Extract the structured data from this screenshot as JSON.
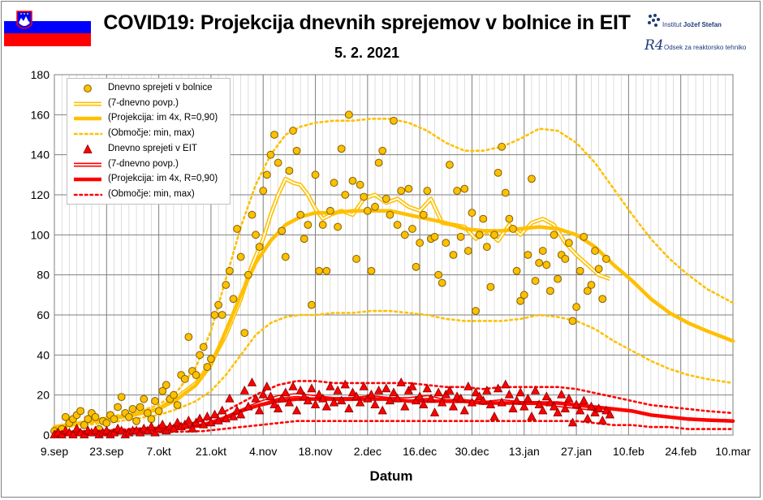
{
  "header": {
    "title": "COVID19: Projekcija dnevnih sprejemov v bolnice in EIT",
    "subtitle": "5. 2. 2021",
    "institute_1_prefix": "Institut ",
    "institute_1_name": "Jožef Stefan",
    "institute_2": "Odsek za reaktorsko tehniko",
    "logo_2_text": "R4"
  },
  "colors": {
    "hospital": "#ffc000",
    "hospital_dark": "#7f6000",
    "icu": "#ff0000",
    "icu_dark": "#7f0000",
    "flag_white": "#ffffff",
    "flag_blue": "#0000ff",
    "flag_red": "#ff0000"
  },
  "legend": [
    {
      "symbol": "circle",
      "label": "Dnevno sprejeti v bolnice"
    },
    {
      "symbol": "double",
      "label": "(7-dnevno povp.)"
    },
    {
      "symbol": "thick",
      "label": "(Projekcija: im 4x, R=0,90)"
    },
    {
      "symbol": "dotted",
      "label": "(Območje: min, max)"
    },
    {
      "symbol": "triangle",
      "label": "Dnevno sprejeti v EIT"
    },
    {
      "symbol": "double",
      "label": "(7-dnevno povp.)"
    },
    {
      "symbol": "thick",
      "label": "(Projekcija: im 4x, R=0,90)"
    },
    {
      "symbol": "dotted",
      "label": "(Območje: min, max)"
    }
  ],
  "chart_data": {
    "type": "scatter",
    "title": "COVID19: Projekcija dnevnih sprejemov v bolnice in EIT",
    "subtitle": "5. 2. 2021",
    "xlabel": "Datum",
    "ylabel": "",
    "xlim": [
      "2020-09-09",
      "2021-03-10"
    ],
    "ylim": [
      0,
      180
    ],
    "yticks": [
      0,
      20,
      40,
      60,
      80,
      100,
      120,
      140,
      160,
      180
    ],
    "xtick_labels": [
      "9.sep",
      "23.sep",
      "7.okt",
      "21.okt",
      "4.nov",
      "18.nov",
      "2.dec",
      "16.dec",
      "30.dec",
      "13.jan",
      "27.jan",
      "10.feb",
      "24.feb",
      "10.mar"
    ],
    "grid": true,
    "legend_position": "top-left",
    "series": [
      {
        "name": "Dnevno sprejeti v bolnice",
        "kind": "scatter-circle",
        "color": "#ffc000",
        "x_start": "2020-09-09",
        "values": [
          2,
          1,
          3,
          9,
          6,
          8,
          10,
          12,
          5,
          8,
          11,
          9,
          3,
          7,
          6,
          10,
          8,
          14,
          19,
          11,
          9,
          13,
          7,
          14,
          18,
          11,
          8,
          17,
          12,
          22,
          25,
          18,
          20,
          15,
          30,
          28,
          49,
          32,
          30,
          40,
          44,
          34,
          38,
          60,
          65,
          60,
          75,
          82,
          68,
          103,
          89,
          51,
          80,
          110,
          100,
          94,
          122,
          130,
          140,
          150,
          136,
          102,
          89,
          132,
          152,
          142,
          110,
          98,
          105,
          65,
          130,
          82,
          105,
          82,
          112,
          126,
          104,
          143,
          120,
          160,
          127,
          88,
          125,
          119,
          112,
          82,
          114,
          136,
          142,
          118,
          110,
          157,
          105,
          122,
          100,
          123,
          103,
          84,
          96,
          110,
          122,
          98,
          99,
          80,
          76,
          96,
          135,
          90,
          122,
          99,
          123,
          92,
          111,
          62,
          100,
          108,
          94,
          74,
          100,
          131,
          144,
          121,
          108,
          103,
          82,
          67,
          70,
          90,
          128,
          77,
          86,
          92,
          85,
          72,
          100,
          78,
          90,
          88,
          96,
          57,
          64,
          82,
          99,
          72,
          75,
          92,
          83,
          68,
          88
        ]
      },
      {
        "name": "(7-dnevno povp.)",
        "kind": "double-line",
        "color": "#ffc000",
        "x": [
          0,
          7,
          14,
          21,
          28,
          33,
          38,
          42,
          46,
          50,
          53,
          56,
          58,
          60,
          62,
          64,
          66,
          68,
          70,
          72,
          74,
          77,
          80,
          83,
          86,
          89,
          92,
          95,
          98,
          101,
          104,
          107,
          110,
          113,
          116,
          119,
          122,
          125,
          128,
          131,
          134,
          137,
          140,
          143,
          146,
          149
        ],
        "values": [
          4,
          6,
          8,
          10,
          13,
          19,
          26,
          36,
          50,
          68,
          85,
          98,
          110,
          120,
          128,
          126,
          125,
          120,
          113,
          108,
          110,
          112,
          110,
          118,
          120,
          116,
          118,
          114,
          112,
          118,
          106,
          105,
          104,
          98,
          102,
          97,
          105,
          100,
          106,
          108,
          105,
          96,
          90,
          85,
          80,
          78
        ]
      },
      {
        "name": "(Projekcija: im 4x, R=0,90)",
        "kind": "thick-line",
        "color": "#ffc000",
        "x": [
          0,
          7,
          14,
          21,
          28,
          33,
          38,
          42,
          46,
          50,
          54,
          58,
          62,
          66,
          70,
          75,
          80,
          85,
          90,
          95,
          100,
          105,
          110,
          115,
          120,
          125,
          130,
          135,
          140,
          145,
          150,
          155,
          160,
          165,
          170,
          175,
          182
        ],
        "values": [
          4,
          6,
          8,
          10,
          13,
          18,
          25,
          35,
          52,
          70,
          86,
          97,
          105,
          109,
          111,
          111,
          112,
          112,
          112,
          110,
          108,
          106,
          103,
          102,
          102,
          103,
          104,
          103,
          100,
          94,
          85,
          77,
          68,
          61,
          56,
          52,
          47
        ]
      },
      {
        "name": "(Območje: min, max) - max",
        "kind": "dotted-line",
        "color": "#ffc000",
        "x": [
          0,
          7,
          14,
          21,
          28,
          33,
          38,
          42,
          46,
          50,
          54,
          58,
          62,
          66,
          70,
          75,
          80,
          85,
          90,
          95,
          100,
          105,
          110,
          115,
          120,
          125,
          130,
          135,
          140,
          145,
          150,
          155,
          160,
          165,
          170,
          175,
          182
        ],
        "values": [
          4,
          6,
          9,
          11,
          15,
          22,
          34,
          52,
          78,
          104,
          125,
          140,
          150,
          154,
          156,
          157,
          157,
          158,
          158,
          156,
          152,
          146,
          142,
          142,
          144,
          148,
          153,
          152,
          146,
          136,
          123,
          110,
          98,
          88,
          80,
          73,
          66
        ]
      },
      {
        "name": "(Območje: min, max) - min",
        "kind": "dotted-line",
        "color": "#ffc000",
        "x": [
          0,
          7,
          14,
          21,
          28,
          33,
          38,
          42,
          46,
          50,
          54,
          58,
          62,
          66,
          70,
          75,
          80,
          85,
          90,
          95,
          100,
          105,
          110,
          115,
          120,
          125,
          130,
          135,
          140,
          145,
          150,
          155,
          160,
          165,
          170,
          175,
          182
        ],
        "values": [
          3,
          5,
          6,
          8,
          10,
          13,
          17,
          22,
          30,
          40,
          50,
          56,
          59,
          60,
          60,
          61,
          61,
          62,
          62,
          61,
          60,
          58,
          57,
          57,
          57,
          58,
          60,
          59,
          57,
          53,
          47,
          42,
          37,
          33,
          30,
          28,
          26
        ]
      },
      {
        "name": "Dnevno sprejeti v EIT",
        "kind": "scatter-triangle",
        "color": "#ff0000",
        "x_start": "2020-09-09",
        "values": [
          0,
          1,
          0,
          2,
          1,
          0,
          3,
          1,
          0,
          2,
          1,
          2,
          0,
          1,
          2,
          0,
          1,
          3,
          2,
          0,
          1,
          2,
          2,
          1,
          3,
          2,
          4,
          1,
          3,
          5,
          2,
          4,
          3,
          6,
          4,
          5,
          7,
          3,
          6,
          8,
          5,
          9,
          6,
          10,
          7,
          12,
          8,
          18,
          9,
          12,
          10,
          22,
          14,
          26,
          18,
          12,
          20,
          24,
          19,
          15,
          13,
          18,
          21,
          16,
          24,
          12,
          22,
          19,
          17,
          23,
          15,
          20,
          18,
          14,
          24,
          16,
          22,
          17,
          25,
          13,
          21,
          19,
          16,
          24,
          18,
          20,
          15,
          22,
          12,
          23,
          17,
          21,
          18,
          26,
          14,
          22,
          24,
          17,
          19,
          15,
          23,
          18,
          11,
          21,
          16,
          20,
          22,
          14,
          19,
          18,
          12,
          24,
          16,
          21,
          19,
          17,
          22,
          15,
          9,
          23,
          16,
          25,
          20,
          13,
          17,
          21,
          14,
          18,
          9,
          22,
          15,
          12,
          19,
          16,
          14,
          11,
          20,
          13,
          18,
          6,
          15,
          12,
          17,
          8,
          14,
          11,
          13,
          7,
          12,
          10
        ]
      },
      {
        "name": "(7-dnevno povp.)",
        "kind": "double-line",
        "color": "#ff0000",
        "x": [
          0,
          10,
          20,
          30,
          40,
          45,
          50,
          55,
          60,
          65,
          70,
          75,
          80,
          85,
          90,
          95,
          100,
          105,
          110,
          115,
          120,
          125,
          130,
          135,
          140,
          145,
          149
        ],
        "values": [
          1,
          1.5,
          2,
          3,
          5,
          8,
          12,
          16,
          19,
          20,
          19,
          18,
          18,
          19,
          18,
          18,
          19,
          17,
          17,
          16,
          17,
          16,
          16,
          15,
          14,
          13,
          12
        ]
      },
      {
        "name": "(Projekcija: im 4x, R=0,90)",
        "kind": "thick-line",
        "color": "#ff0000",
        "x": [
          0,
          10,
          20,
          30,
          40,
          45,
          50,
          55,
          60,
          65,
          70,
          75,
          80,
          85,
          90,
          95,
          100,
          105,
          110,
          115,
          120,
          125,
          130,
          135,
          140,
          145,
          150,
          155,
          160,
          165,
          170,
          175,
          182
        ],
        "values": [
          1,
          1.5,
          2,
          3,
          5,
          8,
          12,
          15,
          17,
          18,
          18,
          18,
          18,
          18,
          18,
          17,
          17,
          17,
          17,
          16,
          16,
          16,
          16,
          16,
          15,
          14,
          13,
          12,
          10,
          9,
          8,
          7.5,
          7
        ]
      },
      {
        "name": "(Območje: min, max) - max",
        "kind": "dotted-line",
        "color": "#ff0000",
        "x": [
          0,
          10,
          20,
          30,
          40,
          45,
          50,
          55,
          60,
          65,
          70,
          75,
          80,
          85,
          90,
          95,
          100,
          105,
          110,
          115,
          120,
          125,
          130,
          135,
          140,
          145,
          150,
          155,
          160,
          165,
          170,
          175,
          182
        ],
        "values": [
          1,
          2,
          3,
          4,
          7,
          11,
          16,
          21,
          25,
          27,
          27,
          26,
          26,
          26,
          26,
          26,
          25,
          24,
          24,
          23,
          24,
          24,
          24,
          24,
          23,
          21,
          19,
          17,
          15,
          14,
          13,
          12,
          11
        ]
      },
      {
        "name": "(Območje: min, max) - min",
        "kind": "dotted-line",
        "color": "#ff0000",
        "x": [
          0,
          10,
          20,
          30,
          40,
          45,
          50,
          55,
          60,
          65,
          70,
          75,
          80,
          85,
          90,
          95,
          100,
          105,
          110,
          115,
          120,
          125,
          130,
          135,
          140,
          145,
          150,
          155,
          160,
          165,
          170,
          175,
          182
        ],
        "values": [
          0,
          0.5,
          1,
          1.5,
          2,
          3,
          4,
          5,
          6,
          7,
          7,
          7,
          7,
          7,
          7,
          7,
          7,
          7,
          7,
          7,
          7,
          7,
          7,
          7,
          7,
          6,
          5,
          5,
          4,
          4,
          3,
          3,
          3
        ]
      }
    ]
  }
}
